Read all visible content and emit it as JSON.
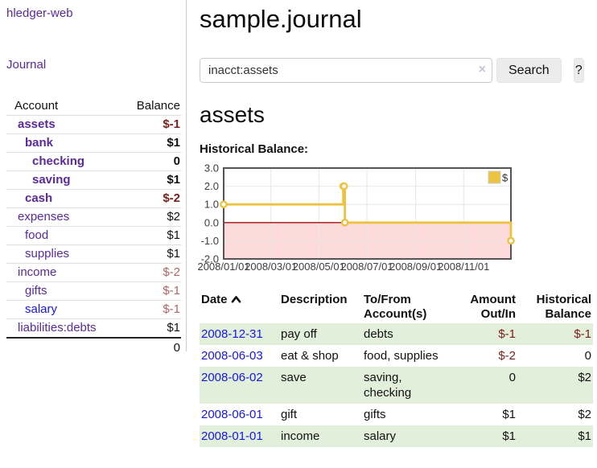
{
  "app": {
    "brand": "hledger-web"
  },
  "sidebar": {
    "nav_journal": "Journal",
    "accounts": {
      "col_account": "Account",
      "col_balance": "Balance",
      "rows": [
        {
          "name": "assets",
          "level": 1,
          "bold": true,
          "balance": "$-1",
          "neg": "strong"
        },
        {
          "name": "bank",
          "level": 2,
          "bold": true,
          "balance": "$1"
        },
        {
          "name": "checking",
          "level": 3,
          "bold": true,
          "balance": "0"
        },
        {
          "name": "saving",
          "level": 3,
          "bold": true,
          "balance": "$1"
        },
        {
          "name": "cash",
          "level": 2,
          "bold": true,
          "balance": "$-2",
          "neg": "strong"
        },
        {
          "name": "expenses",
          "level": 1,
          "bold": false,
          "balance": "$2"
        },
        {
          "name": "food",
          "level": 2,
          "bold": false,
          "balance": "$1"
        },
        {
          "name": "supplies",
          "level": 2,
          "bold": false,
          "balance": "$1"
        },
        {
          "name": "income",
          "level": 1,
          "bold": false,
          "balance": "$-2",
          "neg": "muted"
        },
        {
          "name": "gifts",
          "level": 2,
          "bold": false,
          "balance": "$-1",
          "neg": "muted"
        },
        {
          "name": "salary",
          "level": 2,
          "bold": false,
          "balance": "$-1",
          "neg": "muted",
          "link": "blue"
        },
        {
          "name": "liabilities:debts",
          "level": 1,
          "bold": false,
          "balance": "$1"
        }
      ],
      "total": "0"
    }
  },
  "main": {
    "title": "sample.journal",
    "search": {
      "value": "inacct:assets",
      "clear_icon": "×",
      "search_button": "Search",
      "help_button": "?"
    },
    "heading": "assets",
    "chart_title": "Historical Balance:"
  },
  "chart_data": {
    "type": "line",
    "step": true,
    "title": "Historical Balance",
    "series": [
      {
        "name": "$",
        "color": "#EDC240",
        "points": [
          [
            "2008-01-01",
            1
          ],
          [
            "2008-06-01",
            2
          ],
          [
            "2008-06-02",
            2
          ],
          [
            "2008-06-03",
            0
          ],
          [
            "2008-12-31",
            -1
          ]
        ]
      }
    ],
    "xlim": [
      "2008-01-01",
      "2008-12-31"
    ],
    "ylim": [
      -2,
      3
    ],
    "yticks": [
      "3.0",
      "2.0",
      "1.0",
      "0.0",
      "-1.0",
      "-2.0"
    ],
    "xtick_labels": [
      "2008/01/01",
      "2008/03/01",
      "2008/05/01",
      "2008/07/01",
      "2008/09/01",
      "2008/11/01"
    ],
    "legend": "$",
    "legend_position": "top-right",
    "grid": true,
    "grid_color": "#e7e7e7",
    "border_color": "#545454",
    "negative_region_color": "#fcdada",
    "zero_line_color": "#9e1212",
    "tick_label_color": "#3d3d3d"
  },
  "register": {
    "headers": {
      "date": "Date",
      "description": "Description",
      "accounts": "To/From Account(s)",
      "amount": "Amount Out/In",
      "balance": "Historical Balance"
    },
    "sort": {
      "column": "date",
      "direction": "asc",
      "icon": "chevron-up"
    },
    "rows": [
      {
        "date": "2008-12-31",
        "description": "pay off",
        "accounts": "debts",
        "amount": "$-1",
        "amount_neg": true,
        "balance": "$-1",
        "balance_neg": true,
        "shaded": true
      },
      {
        "date": "2008-06-03",
        "description": "eat & shop",
        "accounts": "food, supplies",
        "amount": "$-2",
        "amount_neg": true,
        "balance": "0",
        "balance_neg": false,
        "shaded": false
      },
      {
        "date": "2008-06-02",
        "description": "save",
        "accounts": "saving, checking",
        "amount": "0",
        "amount_neg": false,
        "balance": "$2",
        "balance_neg": false,
        "shaded": true
      },
      {
        "date": "2008-06-01",
        "description": "gift",
        "accounts": "gifts",
        "amount": "$1",
        "amount_neg": false,
        "balance": "$2",
        "balance_neg": false,
        "shaded": false
      },
      {
        "date": "2008-01-01",
        "description": "income",
        "accounts": "salary",
        "amount": "$1",
        "amount_neg": false,
        "balance": "$1",
        "balance_neg": false,
        "shaded": true
      }
    ]
  }
}
